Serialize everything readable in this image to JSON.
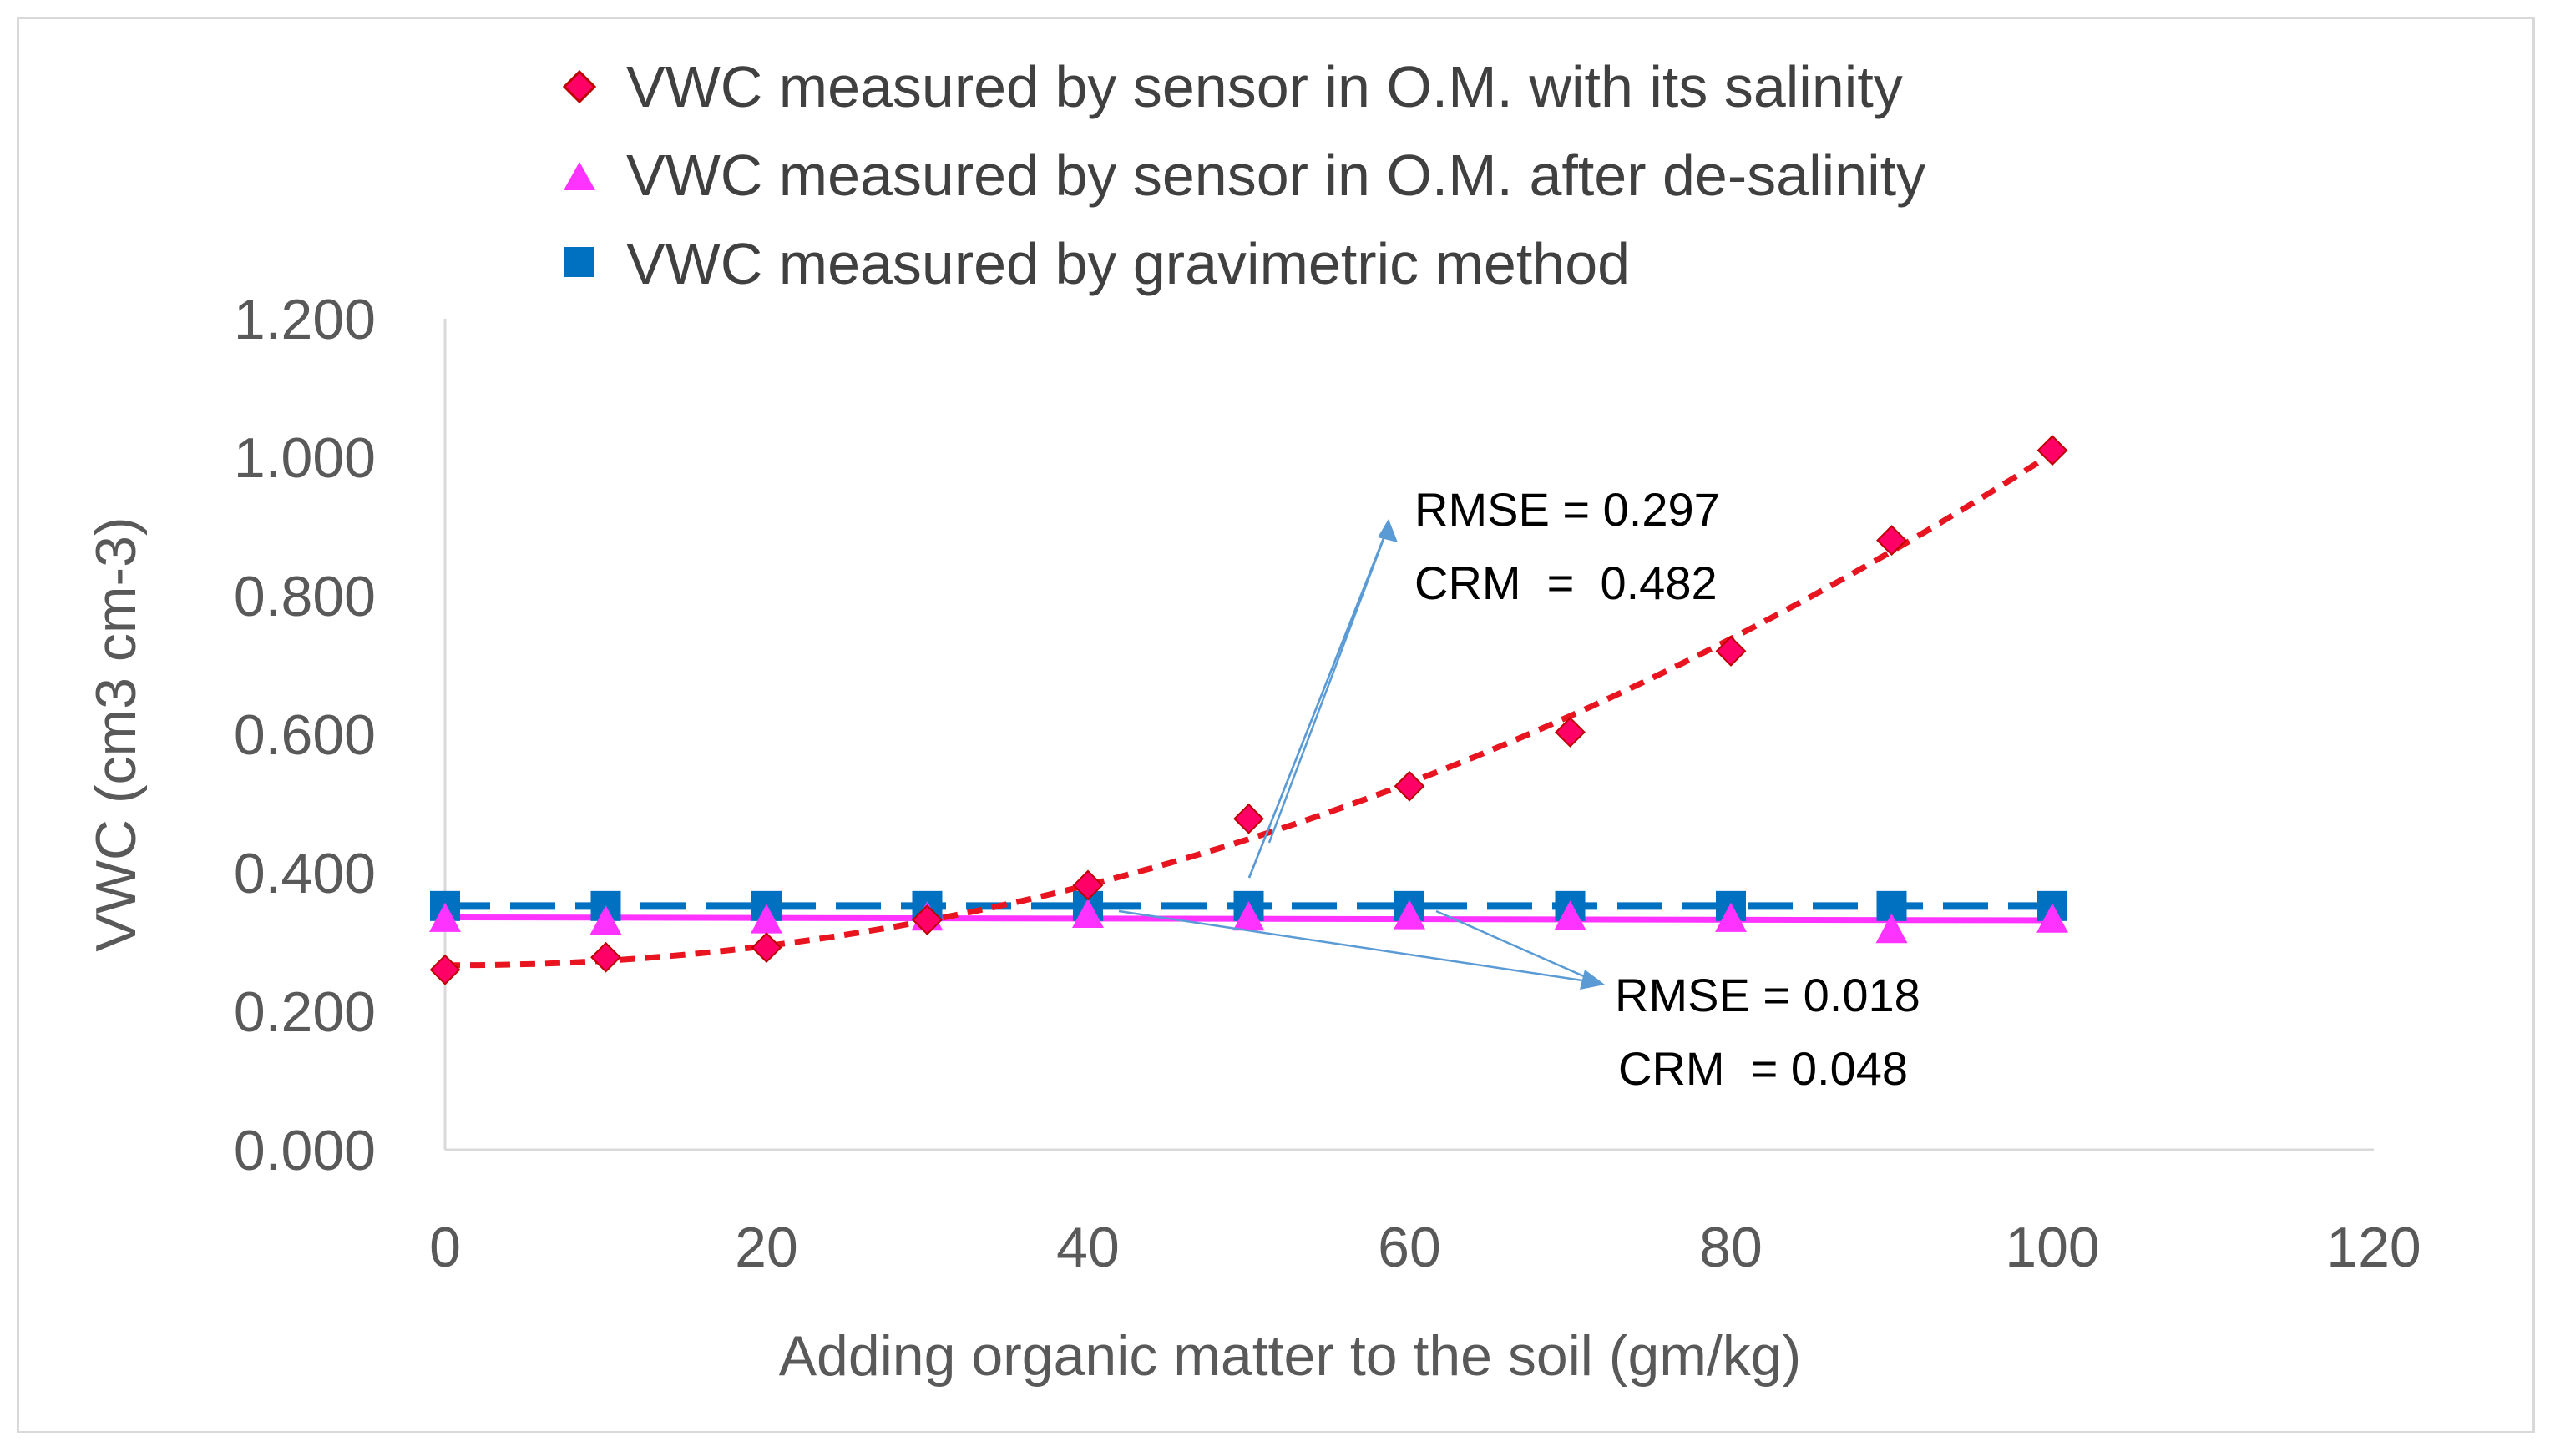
{
  "chart_data": {
    "type": "scatter",
    "title": "",
    "xlabel": "Adding organic matter to the soil (gm/kg)",
    "ylabel": "VWC (cm3 cm-3)",
    "xlim": [
      0,
      120
    ],
    "ylim": [
      0,
      1.2
    ],
    "x_ticks": [
      "0",
      "20",
      "40",
      "60",
      "80",
      "100",
      "120"
    ],
    "y_ticks": [
      "0.000",
      "0.200",
      "0.400",
      "0.600",
      "0.800",
      "1.000",
      "1.200"
    ],
    "legend_position": "top",
    "colors": {
      "salinity": "#ff0066",
      "salinity_trend": "#e8141f",
      "desalinity": "#ff33ff",
      "gravimetric": "#0070c0",
      "arrow": "#5b9bd5",
      "axis": "#d9d9d9"
    },
    "series": [
      {
        "name": "VWC measured by sensor in O.M. with its salinity",
        "marker": "diamond",
        "x": [
          0,
          10,
          20,
          30,
          40,
          50,
          60,
          70,
          80,
          90,
          100
        ],
        "y": [
          0.26,
          0.278,
          0.292,
          0.332,
          0.382,
          0.478,
          0.525,
          0.603,
          0.72,
          0.88,
          1.01
        ],
        "trendline": "polynomial"
      },
      {
        "name": "VWC measured by sensor in O.M. after de-salinity",
        "marker": "triangle",
        "x": [
          0,
          10,
          20,
          30,
          40,
          50,
          60,
          70,
          80,
          90,
          100
        ],
        "y": [
          0.334,
          0.33,
          0.332,
          0.336,
          0.34,
          0.336,
          0.338,
          0.337,
          0.334,
          0.318,
          0.333
        ],
        "trendline": "linear"
      },
      {
        "name": "VWC measured by gravimetric method",
        "marker": "square",
        "x": [
          0,
          10,
          20,
          30,
          40,
          50,
          60,
          70,
          80,
          90,
          100
        ],
        "y": [
          0.352,
          0.352,
          0.352,
          0.352,
          0.352,
          0.352,
          0.352,
          0.352,
          0.352,
          0.352,
          0.352
        ],
        "trendline": "dashed"
      }
    ],
    "annotations": [
      {
        "line1": "RMSE = 0.297",
        "line2": "CRM  =  0.482"
      },
      {
        "line1": "RMSE = 0.018",
        "line2": "CRM  = 0.048"
      }
    ]
  }
}
